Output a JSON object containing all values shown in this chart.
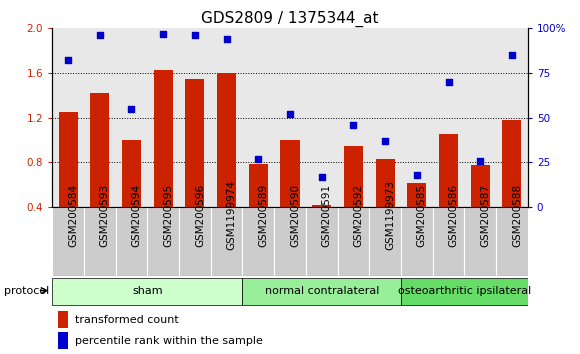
{
  "title": "GDS2809 / 1375344_at",
  "samples": [
    "GSM200584",
    "GSM200593",
    "GSM200594",
    "GSM200595",
    "GSM200596",
    "GSM1199974",
    "GSM200589",
    "GSM200590",
    "GSM200591",
    "GSM200592",
    "GSM1199973",
    "GSM200585",
    "GSM200586",
    "GSM200587",
    "GSM200588"
  ],
  "bar_values": [
    1.25,
    1.42,
    1.0,
    1.63,
    1.55,
    1.6,
    0.79,
    1.0,
    0.42,
    0.95,
    0.83,
    0.62,
    1.05,
    0.78,
    1.18
  ],
  "dot_values": [
    82,
    96,
    55,
    97,
    96,
    94,
    27,
    52,
    17,
    46,
    37,
    18,
    70,
    26,
    85
  ],
  "bar_color": "#cc2200",
  "dot_color": "#0000cc",
  "ylim_left": [
    0.4,
    2.0
  ],
  "ylim_right": [
    0,
    100
  ],
  "yticks_left": [
    0.4,
    0.8,
    1.2,
    1.6,
    2.0
  ],
  "yticks_right": [
    0,
    25,
    50,
    75,
    100
  ],
  "ytick_labels_right": [
    "0",
    "25",
    "50",
    "75",
    "100%"
  ],
  "groups": [
    {
      "label": "sham",
      "start": 0,
      "end": 5,
      "color": "#ccffcc"
    },
    {
      "label": "normal contralateral",
      "start": 6,
      "end": 10,
      "color": "#99ee99"
    },
    {
      "label": "osteoarthritic ipsilateral",
      "start": 11,
      "end": 14,
      "color": "#66dd66"
    }
  ],
  "protocol_label": "protocol",
  "legend_bar": "transformed count",
  "legend_dot": "percentile rank within the sample",
  "plot_bg_color": "#e8e8e8",
  "sample_bg_color": "#cccccc",
  "title_fontsize": 11,
  "tick_fontsize": 7.5,
  "label_fontsize": 8
}
